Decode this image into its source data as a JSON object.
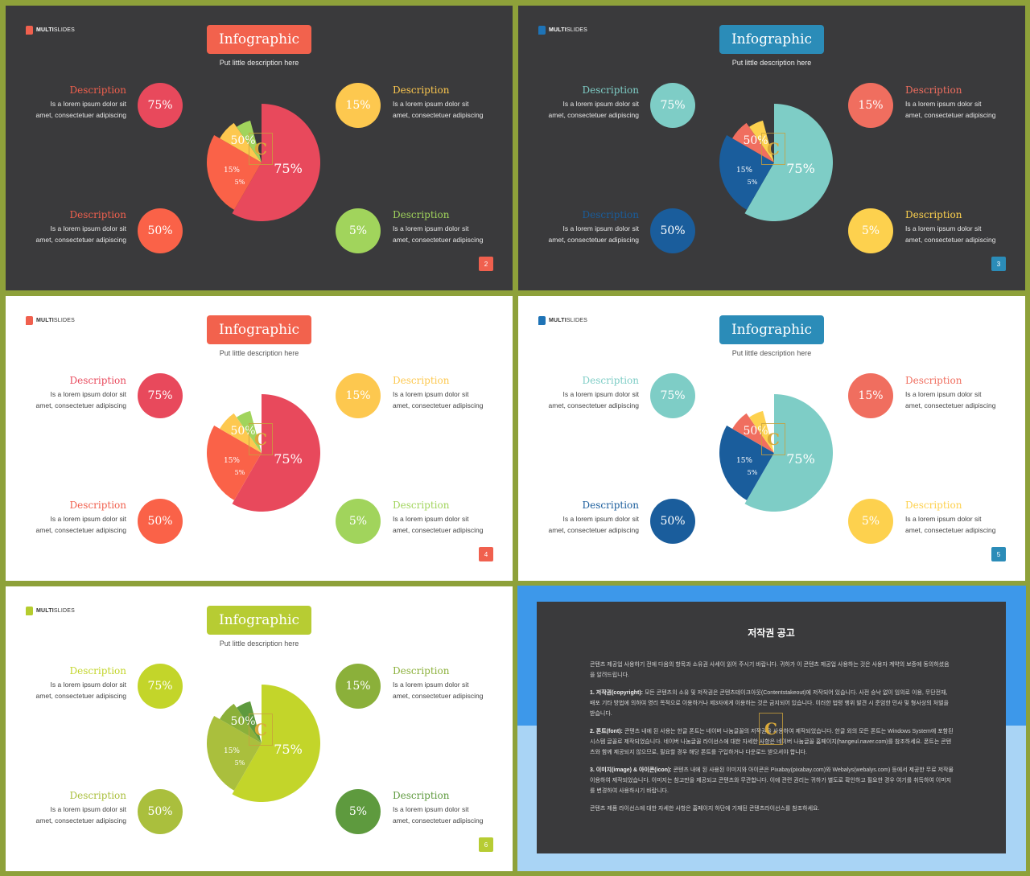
{
  "common": {
    "brand_bold": "MULTI",
    "brand_light": "SLIDES",
    "title": "Infographic",
    "subtitle": "Put little description here",
    "desc_heading": "Description",
    "desc_line1": "Is a lorem ipsum dolor sit",
    "desc_line2": "amet, consectetuer adipiscing",
    "watermark": "C"
  },
  "slides": [
    {
      "page": "2",
      "theme": "dark",
      "brand_color": "#f0604e",
      "title_bg": "#f2624d",
      "page_bg": "#f0604e",
      "items": [
        {
          "pos": "tl",
          "value": "75%",
          "color": "#e8495c",
          "heading_color": "#f0604e"
        },
        {
          "pos": "tr",
          "value": "15%",
          "color": "#fdc84f",
          "heading_color": "#fdc84f"
        },
        {
          "pos": "bl",
          "value": "50%",
          "color": "#fa6248",
          "heading_color": "#f0604e"
        },
        {
          "pos": "br",
          "value": "5%",
          "color": "#a1d45c",
          "heading_color": "#a1d45c"
        }
      ],
      "chart_data": {
        "type": "pie",
        "labels": [
          "75%",
          "50%",
          "15%",
          "5%"
        ],
        "values": [
          75,
          50,
          15,
          5
        ],
        "colors": [
          "#e8495c",
          "#fa6248",
          "#fdc84f",
          "#a1d45c"
        ]
      }
    },
    {
      "page": "3",
      "theme": "dark",
      "brand_color": "#1e73b6",
      "title_bg": "#2b8cb8",
      "page_bg": "#2b8cb8",
      "items": [
        {
          "pos": "tl",
          "value": "75%",
          "color": "#7ecdc6",
          "heading_color": "#7ecdc6"
        },
        {
          "pos": "tr",
          "value": "15%",
          "color": "#f06e5f",
          "heading_color": "#f06e5f"
        },
        {
          "pos": "bl",
          "value": "50%",
          "color": "#1a5d9c",
          "heading_color": "#1a5d9c"
        },
        {
          "pos": "br",
          "value": "5%",
          "color": "#fdd14e",
          "heading_color": "#fdd14e"
        }
      ],
      "chart_data": {
        "type": "pie",
        "labels": [
          "75%",
          "50%",
          "15%",
          "5%"
        ],
        "values": [
          75,
          50,
          15,
          5
        ],
        "colors": [
          "#7ecdc6",
          "#1a5d9c",
          "#f06e5f",
          "#fdd14e"
        ]
      }
    },
    {
      "page": "4",
      "theme": "light",
      "brand_color": "#f0604e",
      "title_bg": "#f2624d",
      "page_bg": "#f0604e",
      "items": [
        {
          "pos": "tl",
          "value": "75%",
          "color": "#e8495c",
          "heading_color": "#e8495c"
        },
        {
          "pos": "tr",
          "value": "15%",
          "color": "#fdc84f",
          "heading_color": "#fdc84f"
        },
        {
          "pos": "bl",
          "value": "50%",
          "color": "#fa6248",
          "heading_color": "#f0604e"
        },
        {
          "pos": "br",
          "value": "5%",
          "color": "#a1d45c",
          "heading_color": "#a1d45c"
        }
      ],
      "chart_data": {
        "type": "pie",
        "labels": [
          "75%",
          "50%",
          "15%",
          "5%"
        ],
        "values": [
          75,
          50,
          15,
          5
        ],
        "colors": [
          "#e8495c",
          "#fa6248",
          "#fdc84f",
          "#a1d45c"
        ]
      }
    },
    {
      "page": "5",
      "theme": "light",
      "brand_color": "#1e73b6",
      "title_bg": "#2b8cb8",
      "page_bg": "#2b8cb8",
      "items": [
        {
          "pos": "tl",
          "value": "75%",
          "color": "#7ecdc6",
          "heading_color": "#7ecdc6"
        },
        {
          "pos": "tr",
          "value": "15%",
          "color": "#f06e5f",
          "heading_color": "#f06e5f"
        },
        {
          "pos": "bl",
          "value": "50%",
          "color": "#1a5d9c",
          "heading_color": "#1a5d9c"
        },
        {
          "pos": "br",
          "value": "5%",
          "color": "#fdd14e",
          "heading_color": "#fdd14e"
        }
      ],
      "chart_data": {
        "type": "pie",
        "labels": [
          "75%",
          "50%",
          "15%",
          "5%"
        ],
        "values": [
          75,
          50,
          15,
          5
        ],
        "colors": [
          "#7ecdc6",
          "#1a5d9c",
          "#f06e5f",
          "#fdd14e"
        ]
      }
    },
    {
      "page": "6",
      "theme": "light",
      "brand_color": "#b5cc2e",
      "title_bg": "#b7cc33",
      "page_bg": "#b7cc33",
      "items": [
        {
          "pos": "tl",
          "value": "75%",
          "color": "#c3d52a",
          "heading_color": "#c3d52a"
        },
        {
          "pos": "tr",
          "value": "15%",
          "color": "#8bb03a",
          "heading_color": "#8bb03a"
        },
        {
          "pos": "bl",
          "value": "50%",
          "color": "#aabf3d",
          "heading_color": "#aabf3d"
        },
        {
          "pos": "br",
          "value": "5%",
          "color": "#5e9a3e",
          "heading_color": "#5e9a3e"
        }
      ],
      "chart_data": {
        "type": "pie",
        "labels": [
          "75%",
          "50%",
          "15%",
          "5%"
        ],
        "values": [
          75,
          50,
          15,
          5
        ],
        "colors": [
          "#c3d52a",
          "#aabf3d",
          "#8bb03a",
          "#5e9a3e"
        ]
      }
    }
  ],
  "copyright": {
    "title": "저작권 공고",
    "intro": "콘텐츠 제공업 사용하기 전에 다음의 항목과 소유권 사세이 읽어 주시기 바랍니다. 귀하가 이 콘텐츠 제공업 사용하는 것은 사용자 계약의 보증에 동의하셨음을 알려드립니다.",
    "s1_head": "1. 저작권(copyright):",
    "s1_body": " 모든 콘텐츠의 소유 및 저작권은 콘텐츠테이크아웃(Contentstakeout)에 저작되어 있습니다. 사전 승낙 없이 임의로 이용, 무단전재, 배포 기타 방법에 의하여 영리 목적으로 이용하거나 제3자에게 이용하는 것은 금지되어 있습니다. 이러한 법령 행위 발견 시 준엄한 민사 및 형사상의 처벌을 받습니다.",
    "s2_head": "2. 폰트(font):",
    "s2_body": " 콘텐츠 내에 된 사용는 한글 폰트는 네이버 나눔글꼴의 저작권을 사용하여 제작되었습니다. 한글 외의 모든 폰트는 Windows System에 포함된 시스템 글꼴로 제작되었습니다. 네이버 나눔글꼴 라이선스에 대한 자세한 사항은 네이버 나눔글꼴 홈페이지(hangeul.naver.com)를 참조하세요. 폰트는 콘텐츠와 함께 제공되지 않으므로, 필요할 경우 해당 폰트를 구입하거나 다운로드 받으셔야 합니다.",
    "s3_head": "3. 이미지(image) & 아이콘(icon):",
    "s3_body": " 콘텐츠 내에 된 사용된 이미지와 아이콘은 Pixabay(pixabay.com)와 Webalys(webalys.com) 등에서 제공한 무료 저작물 이용하여 제작되었습니다. 이미지는 참고만을 제공되고 콘텐츠와 무관합니다. 이에 관련 권리는 귀하가 별도로 확인하고 필요한 경우 여기를 취득하여 이미지를 변경하여 사용하시기 바랍니다.",
    "outro": "콘텐츠 제품 라이선스에 대한 자세한 사항은 홈페이지 하단에 기재된 콘텐츠라이선스를 참조하세요."
  }
}
